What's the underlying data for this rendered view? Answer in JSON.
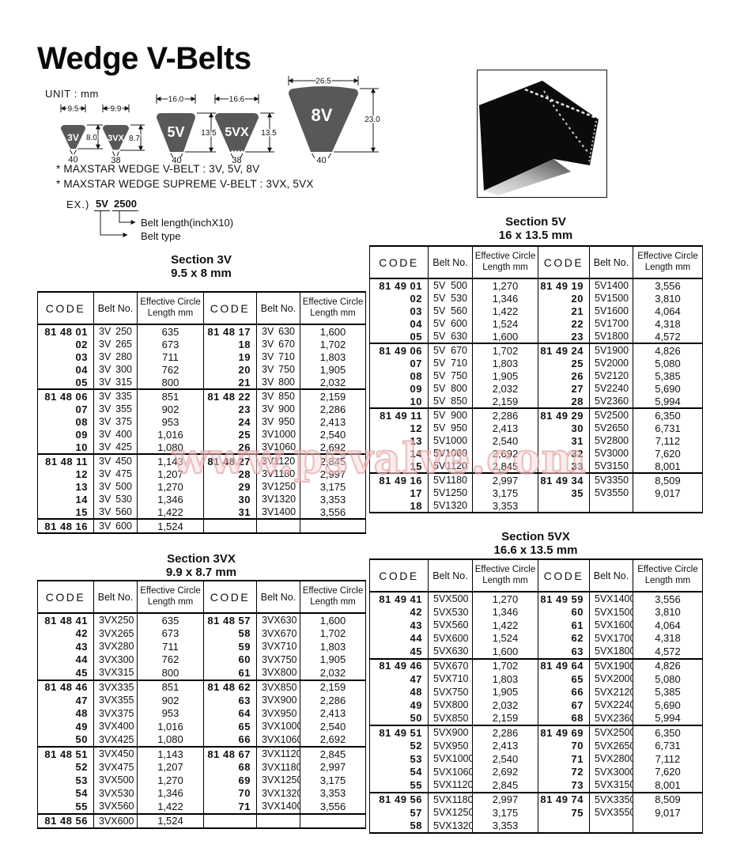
{
  "page_title": "Wedge V-Belts",
  "unit_label": "UNIT : mm",
  "notes": {
    "line1": "* MAXSTAR WEDGE V-BELT : 3V, 5V, 8V",
    "line2": "* MAXSTAR WEDGE SUPREME V-BELT : 3VX, 5VX"
  },
  "example": {
    "prefix": "EX.)",
    "belt_type": "5V",
    "belt_length": "2500",
    "length_label": "Belt length(inchX10)",
    "type_label": "Belt type"
  },
  "watermark": "www.psvalve.com",
  "colors": {
    "belt_shape_gray": "#57585a",
    "watermark_pink": "#e29e9e",
    "text_black": "#111111"
  },
  "profiles": [
    {
      "label": "3V",
      "width": "9.5",
      "height": "8.0",
      "angle": "40"
    },
    {
      "label": "3VX",
      "width": "9.9",
      "height": "8.7",
      "angle": "38"
    },
    {
      "label": "5V",
      "width": "16.0",
      "height": "13.5",
      "angle": "40"
    },
    {
      "label": "5VX",
      "width": "16.6",
      "height": "13.5",
      "angle": "38"
    },
    {
      "label": "8V",
      "width": "26.5",
      "height": "23.0",
      "angle": "40"
    }
  ],
  "headers": {
    "code": "CODE",
    "belt": "Belt No.",
    "eff_line1": "Effective Circle",
    "eff_line2": "Length mm"
  },
  "tables": [
    {
      "title": "Section 3V",
      "subtitle": "9.5 x 8 mm",
      "row_groups": [
        [
          [
            "81 48 01",
            "3V 250",
            "635",
            "81 48 17",
            "3V 630",
            "1,600"
          ],
          [
            "02",
            "3V 265",
            "673",
            "18",
            "3V 670",
            "1,702"
          ],
          [
            "03",
            "3V 280",
            "711",
            "19",
            "3V 710",
            "1,803"
          ],
          [
            "04",
            "3V 300",
            "762",
            "20",
            "3V 750",
            "1,905"
          ],
          [
            "05",
            "3V 315",
            "800",
            "21",
            "3V 800",
            "2,032"
          ]
        ],
        [
          [
            "81 48 06",
            "3V 335",
            "851",
            "81 48 22",
            "3V 850",
            "2,159"
          ],
          [
            "07",
            "3V 355",
            "902",
            "23",
            "3V 900",
            "2,286"
          ],
          [
            "08",
            "3V 375",
            "953",
            "24",
            "3V 950",
            "2,413"
          ],
          [
            "09",
            "3V 400",
            "1,016",
            "25",
            "3V 1000",
            "2,540"
          ],
          [
            "10",
            "3V 425",
            "1,080",
            "26",
            "3V 1060",
            "2,692"
          ]
        ],
        [
          [
            "81 48 11",
            "3V 450",
            "1,143",
            "81 48 27",
            "3V 1120",
            "2,845"
          ],
          [
            "12",
            "3V 475",
            "1,207",
            "28",
            "3V 1180",
            "2,997"
          ],
          [
            "13",
            "3V 500",
            "1,270",
            "29",
            "3V 1250",
            "3,175"
          ],
          [
            "14",
            "3V 530",
            "1,346",
            "30",
            "3V 1320",
            "3,353"
          ],
          [
            "15",
            "3V 560",
            "1,422",
            "31",
            "3V 1400",
            "3,556"
          ]
        ],
        [
          [
            "81 48 16",
            "3V 600",
            "1,524",
            "",
            "",
            ""
          ]
        ]
      ]
    },
    {
      "title": "Section 5V",
      "subtitle": "16 x 13.5 mm",
      "row_groups": [
        [
          [
            "81 49 01",
            "5V 500",
            "1,270",
            "81 49 19",
            "5V 1400",
            "3,556"
          ],
          [
            "02",
            "5V 530",
            "1,346",
            "20",
            "5V 1500",
            "3,810"
          ],
          [
            "03",
            "5V 560",
            "1,422",
            "21",
            "5V 1600",
            "4,064"
          ],
          [
            "04",
            "5V 600",
            "1,524",
            "22",
            "5V 1700",
            "4,318"
          ],
          [
            "05",
            "5V 630",
            "1,600",
            "23",
            "5V 1800",
            "4,572"
          ]
        ],
        [
          [
            "81 49 06",
            "5V 670",
            "1,702",
            "81 49 24",
            "5V 1900",
            "4,826"
          ],
          [
            "07",
            "5V 710",
            "1,803",
            "25",
            "5V 2000",
            "5,080"
          ],
          [
            "08",
            "5V 750",
            "1,905",
            "26",
            "5V 2120",
            "5,385"
          ],
          [
            "09",
            "5V 800",
            "2,032",
            "27",
            "5V 2240",
            "5,690"
          ],
          [
            "10",
            "5V 850",
            "2,159",
            "28",
            "5V 2360",
            "5,994"
          ]
        ],
        [
          [
            "81 49 11",
            "5V 900",
            "2,286",
            "81 49 29",
            "5V 2500",
            "6,350"
          ],
          [
            "12",
            "5V 950",
            "2,413",
            "30",
            "5V 2650",
            "6,731"
          ],
          [
            "13",
            "5V 1000",
            "2,540",
            "31",
            "5V 2800",
            "7,112"
          ],
          [
            "14",
            "5V 1060",
            "2,692",
            "32",
            "5V 3000",
            "7,620"
          ],
          [
            "15",
            "5V 1120",
            "2,845",
            "33",
            "5V 3150",
            "8,001"
          ]
        ],
        [
          [
            "81 49 16",
            "5V 1180",
            "2,997",
            "81 49 34",
            "5V 3350",
            "8,509"
          ],
          [
            "17",
            "5V 1250",
            "3,175",
            "35",
            "5V 3550",
            "9,017"
          ],
          [
            "18",
            "5V 1320",
            "3,353",
            "",
            "",
            ""
          ]
        ]
      ]
    },
    {
      "title": "Section 3VX",
      "subtitle": "9.9 x 8.7 mm",
      "row_groups": [
        [
          [
            "81 48 41",
            "3VX 250",
            "635",
            "81 48 57",
            "3VX 630",
            "1,600"
          ],
          [
            "42",
            "3VX 265",
            "673",
            "58",
            "3VX 670",
            "1,702"
          ],
          [
            "43",
            "3VX 280",
            "711",
            "59",
            "3VX 710",
            "1,803"
          ],
          [
            "44",
            "3VX 300",
            "762",
            "60",
            "3VX 750",
            "1,905"
          ],
          [
            "45",
            "3VX 315",
            "800",
            "61",
            "3VX 800",
            "2,032"
          ]
        ],
        [
          [
            "81 48 46",
            "3VX 335",
            "851",
            "81 48 62",
            "3VX 850",
            "2,159"
          ],
          [
            "47",
            "3VX 355",
            "902",
            "63",
            "3VX 900",
            "2,286"
          ],
          [
            "48",
            "3VX 375",
            "953",
            "64",
            "3VX 950",
            "2,413"
          ],
          [
            "49",
            "3VX 400",
            "1,016",
            "65",
            "3VX 1000",
            "2,540"
          ],
          [
            "50",
            "3VX 425",
            "1,080",
            "66",
            "3VX 1060",
            "2,692"
          ]
        ],
        [
          [
            "81 48 51",
            "3VX 450",
            "1,143",
            "81 48 67",
            "3VX 1120",
            "2,845"
          ],
          [
            "52",
            "3VX 475",
            "1,207",
            "68",
            "3VX 1180",
            "2,997"
          ],
          [
            "53",
            "3VX 500",
            "1,270",
            "69",
            "3VX 1250",
            "3,175"
          ],
          [
            "54",
            "3VX 530",
            "1,346",
            "70",
            "3VX 1320",
            "3,353"
          ],
          [
            "55",
            "3VX 560",
            "1,422",
            "71",
            "3VX 1400",
            "3,556"
          ]
        ],
        [
          [
            "81 48 56",
            "3VX 600",
            "1,524",
            "",
            "",
            ""
          ]
        ]
      ]
    },
    {
      "title": "Section 5VX",
      "subtitle": "16.6 x 13.5 mm",
      "row_groups": [
        [
          [
            "81 49 41",
            "5VX 500",
            "1,270",
            "81 49 59",
            "5VX 1400",
            "3,556"
          ],
          [
            "42",
            "5VX 530",
            "1,346",
            "60",
            "5VX 1500",
            "3,810"
          ],
          [
            "43",
            "5VX 560",
            "1,422",
            "61",
            "5VX 1600",
            "4,064"
          ],
          [
            "44",
            "5VX 600",
            "1,524",
            "62",
            "5VX 1700",
            "4,318"
          ],
          [
            "45",
            "5VX 630",
            "1,600",
            "63",
            "5VX 1800",
            "4,572"
          ]
        ],
        [
          [
            "81 49 46",
            "5VX 670",
            "1,702",
            "81 49 64",
            "5VX 1900",
            "4,826"
          ],
          [
            "47",
            "5VX 710",
            "1,803",
            "65",
            "5VX 2000",
            "5,080"
          ],
          [
            "48",
            "5VX 750",
            "1,905",
            "66",
            "5VX 2120",
            "5,385"
          ],
          [
            "49",
            "5VX 800",
            "2,032",
            "67",
            "5VX 2240",
            "5,690"
          ],
          [
            "50",
            "5VX 850",
            "2,159",
            "68",
            "5VX 2360",
            "5,994"
          ]
        ],
        [
          [
            "81 49 51",
            "5VX 900",
            "2,286",
            "81 49 69",
            "5VX 2500",
            "6,350"
          ],
          [
            "52",
            "5VX 950",
            "2,413",
            "70",
            "5VX 2650",
            "6,731"
          ],
          [
            "53",
            "5VX 1000",
            "2,540",
            "71",
            "5VX 2800",
            "7,112"
          ],
          [
            "54",
            "5VX 1060",
            "2,692",
            "72",
            "5VX 3000",
            "7,620"
          ],
          [
            "55",
            "5VX 1120",
            "2,845",
            "73",
            "5VX 3150",
            "8,001"
          ]
        ],
        [
          [
            "81 49 56",
            "5VX 1180",
            "2,997",
            "81 49 74",
            "5VX 3350",
            "8,509"
          ],
          [
            "57",
            "5VX 1250",
            "3,175",
            "75",
            "5VX 3550",
            "9,017"
          ],
          [
            "58",
            "5VX 1320",
            "3,353",
            "",
            "",
            ""
          ]
        ]
      ]
    }
  ]
}
